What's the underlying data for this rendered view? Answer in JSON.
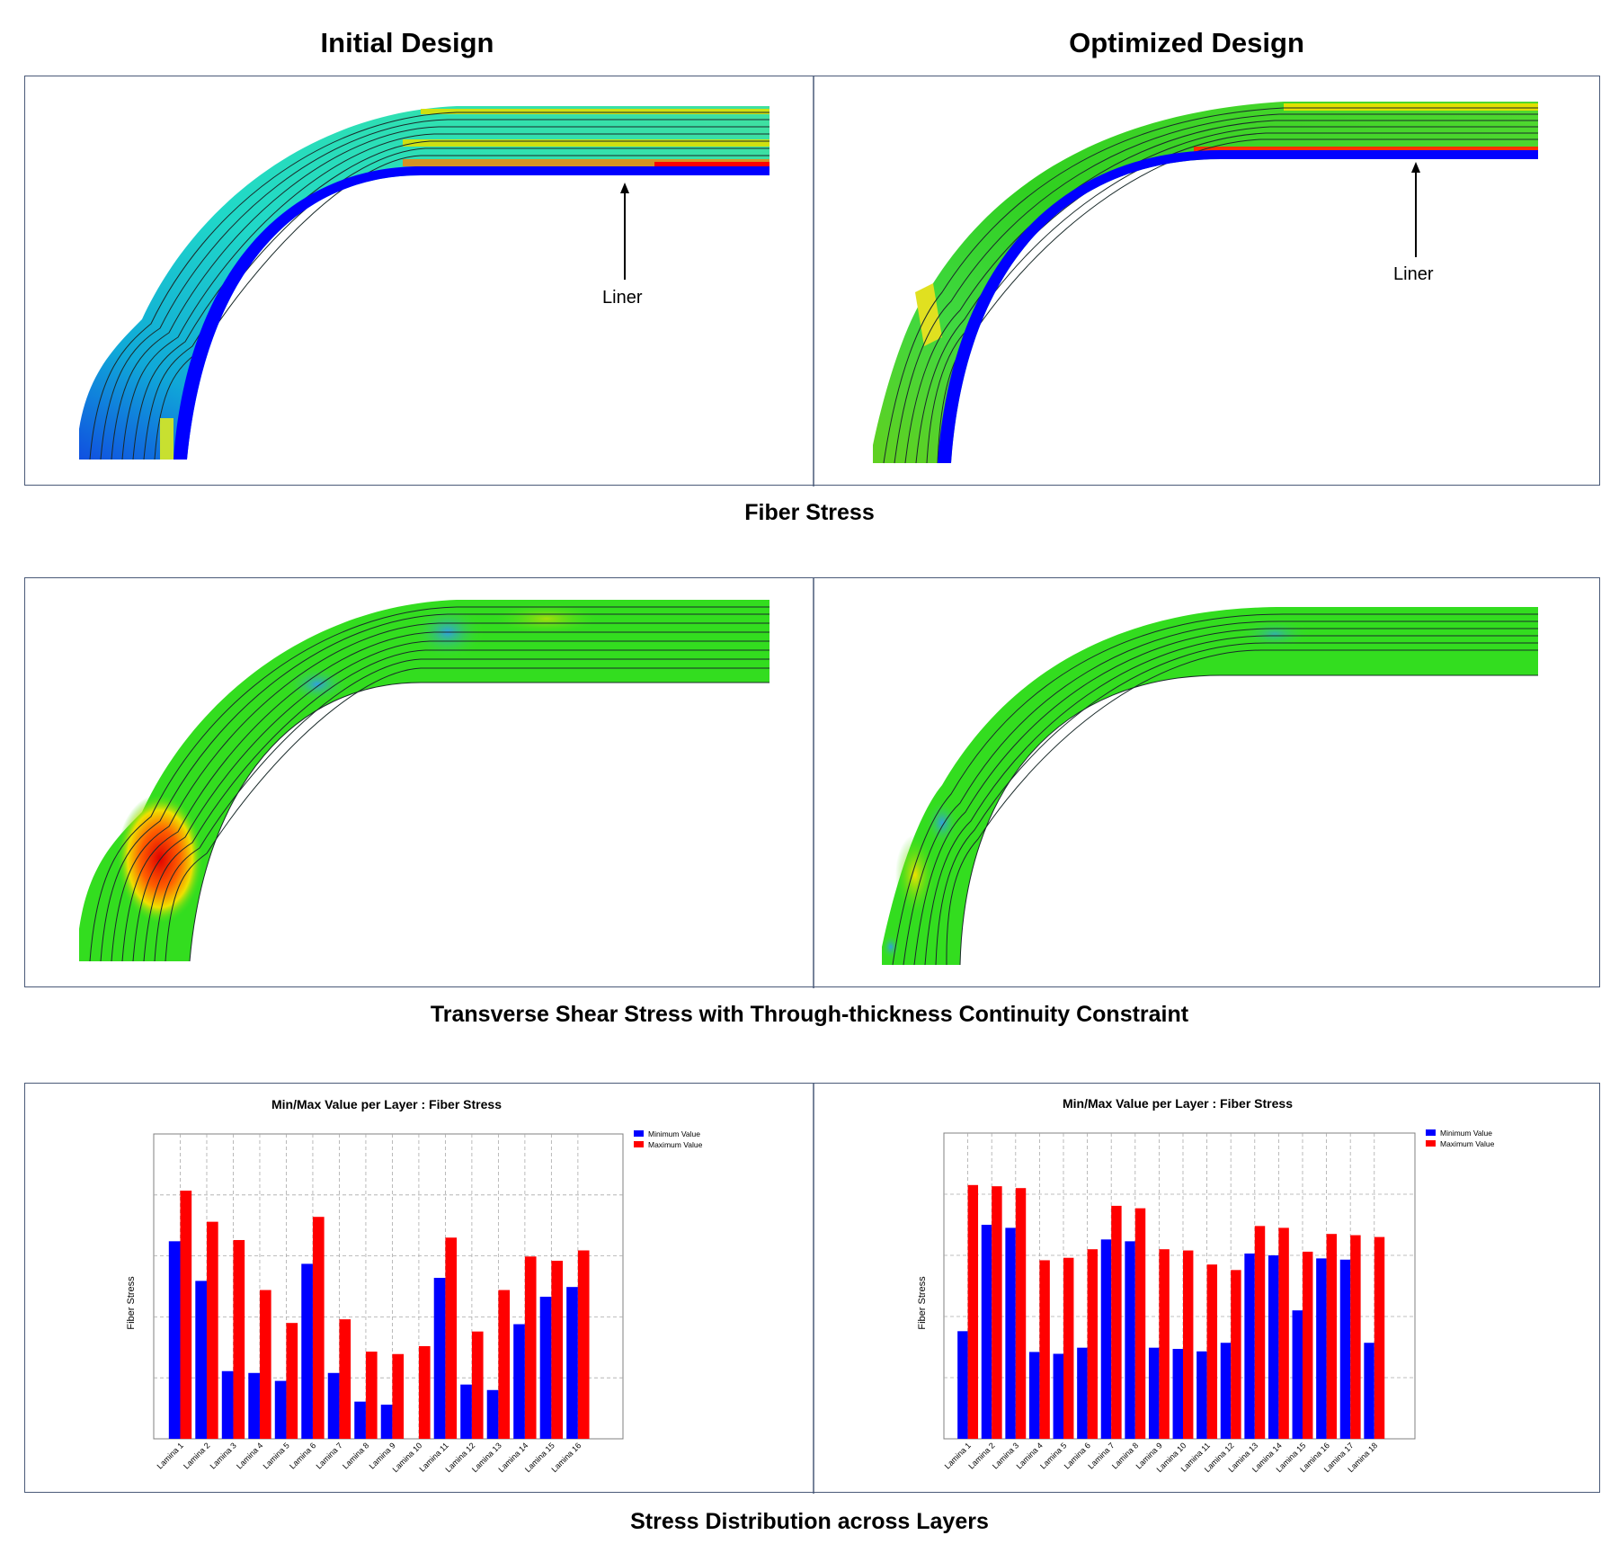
{
  "headers": {
    "initial": "Initial Design",
    "optimized": "Optimized Design"
  },
  "captions": {
    "fiber_stress": "Fiber Stress",
    "shear": "Transverse Shear Stress with Through-thickness Continuity Constraint",
    "distribution": "Stress Distribution across Layers"
  },
  "annotations": {
    "liner_initial": "Liner",
    "liner_optimized": "Liner"
  },
  "colors": {
    "liner": "#0000ff",
    "min_bar": "#0000ff",
    "max_bar": "#ff0000",
    "panel_border": "#4a5a78"
  },
  "chart_data": [
    {
      "type": "bar",
      "title": "Min/Max Value per Layer : Fiber Stress",
      "ylabel": "Fiber Stress",
      "xlabel": "",
      "legend_position": "top-right",
      "grid": true,
      "ylim": [
        0,
        5
      ],
      "categories": [
        "Lamina 1",
        "Lamina 2",
        "Lamina 3",
        "Lamina 4",
        "Lamina 5",
        "Lamina 6",
        "Lamina 7",
        "Lamina 8",
        "Lamina 9",
        "Lamina 10",
        "Lamina 11",
        "Lamina 12",
        "Lamina 13",
        "Lamina 14",
        "Lamina 15",
        "Lamina 16"
      ],
      "series": [
        {
          "name": "Minimum Value",
          "values": [
            3.24,
            2.59,
            1.11,
            1.08,
            0.95,
            2.87,
            1.08,
            0.61,
            0.56,
            0.0,
            2.64,
            0.89,
            0.8,
            1.88,
            2.33,
            2.49
          ]
        },
        {
          "name": "Maximum Value",
          "values": [
            4.07,
            3.56,
            3.26,
            2.44,
            1.9,
            3.64,
            1.96,
            1.43,
            1.39,
            1.52,
            3.3,
            1.76,
            2.44,
            2.99,
            2.92,
            3.09
          ]
        }
      ]
    },
    {
      "type": "bar",
      "title": "Min/Max Value per Layer : Fiber Stress",
      "ylabel": "Fiber Stress",
      "xlabel": "",
      "legend_position": "top-right",
      "grid": true,
      "ylim": [
        0,
        5
      ],
      "categories": [
        "Lamina 1",
        "Lamina 2",
        "Lamina 3",
        "Lamina 4",
        "Lamina 5",
        "Lamina 6",
        "Lamina 7",
        "Lamina 8",
        "Lamina 9",
        "Lamina 10",
        "Lamina 11",
        "Lamina 12",
        "Lamina 13",
        "Lamina 14",
        "Lamina 15",
        "Lamina 16",
        "Lamina 17",
        "Lamina 18"
      ],
      "series": [
        {
          "name": "Minimum Value",
          "values": [
            1.76,
            3.5,
            3.45,
            1.42,
            1.39,
            1.49,
            3.26,
            3.23,
            1.49,
            1.47,
            1.43,
            1.57,
            3.03,
            3.0,
            2.1,
            2.95,
            2.93,
            1.57
          ]
        },
        {
          "name": "Maximum Value",
          "values": [
            4.15,
            4.13,
            4.1,
            2.92,
            2.96,
            3.1,
            3.81,
            3.77,
            3.1,
            3.08,
            2.85,
            2.76,
            3.48,
            3.45,
            3.06,
            3.35,
            3.33,
            3.3
          ]
        }
      ]
    }
  ]
}
